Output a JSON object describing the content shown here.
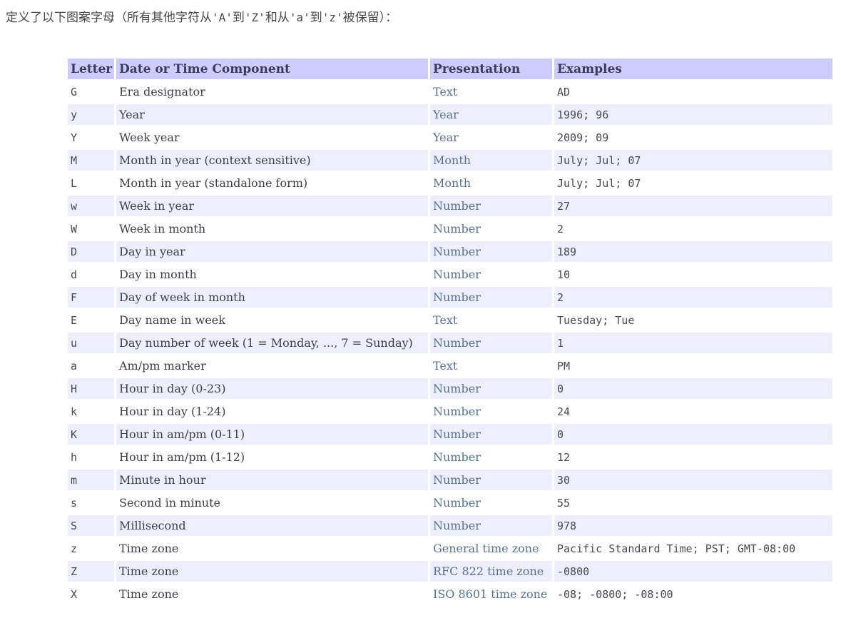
{
  "intro": {
    "full_text": "定义了以下图案字母（所有其他字符从'A'到'Z'和从'a'到'z'被保留）：",
    "segments": [
      {
        "text": "定义了以下图案字母（所有其他字符从",
        "mono": false
      },
      {
        "text": "'A'",
        "mono": true
      },
      {
        "text": "到",
        "mono": false
      },
      {
        "text": "'Z'",
        "mono": true
      },
      {
        "text": "和从",
        "mono": false
      },
      {
        "text": "'a'",
        "mono": true
      },
      {
        "text": "到",
        "mono": false
      },
      {
        "text": "'z'",
        "mono": true
      },
      {
        "text": "被保留）：",
        "mono": false
      }
    ]
  },
  "table": {
    "headers": [
      "Letter",
      "Date or Time Component",
      "Presentation",
      "Examples"
    ],
    "rows": [
      {
        "letter": "G",
        "component": "Era designator",
        "presentation": "Text",
        "examples": "AD"
      },
      {
        "letter": "y",
        "component": "Year",
        "presentation": "Year",
        "examples": "1996; 96"
      },
      {
        "letter": "Y",
        "component": "Week year",
        "presentation": "Year",
        "examples": "2009; 09"
      },
      {
        "letter": "M",
        "component": "Month in year (context sensitive)",
        "presentation": "Month",
        "examples": "July; Jul; 07"
      },
      {
        "letter": "L",
        "component": "Month in year (standalone form)",
        "presentation": "Month",
        "examples": "July; Jul; 07"
      },
      {
        "letter": "w",
        "component": "Week in year",
        "presentation": "Number",
        "examples": "27"
      },
      {
        "letter": "W",
        "component": "Week in month",
        "presentation": "Number",
        "examples": "2"
      },
      {
        "letter": "D",
        "component": "Day in year",
        "presentation": "Number",
        "examples": "189"
      },
      {
        "letter": "d",
        "component": "Day in month",
        "presentation": "Number",
        "examples": "10"
      },
      {
        "letter": "F",
        "component": "Day of week in month",
        "presentation": "Number",
        "examples": "2"
      },
      {
        "letter": "E",
        "component": "Day name in week",
        "presentation": "Text",
        "examples": "Tuesday; Tue"
      },
      {
        "letter": "u",
        "component": "Day number of week (1 = Monday, ..., 7 = Sunday)",
        "presentation": "Number",
        "examples": "1"
      },
      {
        "letter": "a",
        "component": "Am/pm marker",
        "presentation": "Text",
        "examples": "PM"
      },
      {
        "letter": "H",
        "component": "Hour in day (0-23)",
        "presentation": "Number",
        "examples": "0"
      },
      {
        "letter": "k",
        "component": "Hour in day (1-24)",
        "presentation": "Number",
        "examples": "24"
      },
      {
        "letter": "K",
        "component": "Hour in am/pm (0-11)",
        "presentation": "Number",
        "examples": "0"
      },
      {
        "letter": "h",
        "component": "Hour in am/pm (1-12)",
        "presentation": "Number",
        "examples": "12"
      },
      {
        "letter": "m",
        "component": "Minute in hour",
        "presentation": "Number",
        "examples": "30"
      },
      {
        "letter": "s",
        "component": "Second in minute",
        "presentation": "Number",
        "examples": "55"
      },
      {
        "letter": "S",
        "component": "Millisecond",
        "presentation": "Number",
        "examples": "978"
      },
      {
        "letter": "z",
        "component": "Time zone",
        "presentation": "General time zone",
        "examples": "Pacific Standard Time; PST; GMT-08:00"
      },
      {
        "letter": "Z",
        "component": "Time zone",
        "presentation": "RFC 822 time zone",
        "examples": "-0800"
      },
      {
        "letter": "X",
        "component": "Time zone",
        "presentation": "ISO 8601 time zone",
        "examples": "-08; -0800; -08:00"
      }
    ]
  },
  "colors": {
    "header_bg": "#ccccff",
    "stripe_bg": "#eeeeff",
    "row_bg": "#ffffff",
    "header_text": "#3b3b5e",
    "body_text": "#3f3f4a",
    "presentation_text": "#567293",
    "mono_text": "#4a4a55",
    "intro_text": "#4a4a4a"
  }
}
